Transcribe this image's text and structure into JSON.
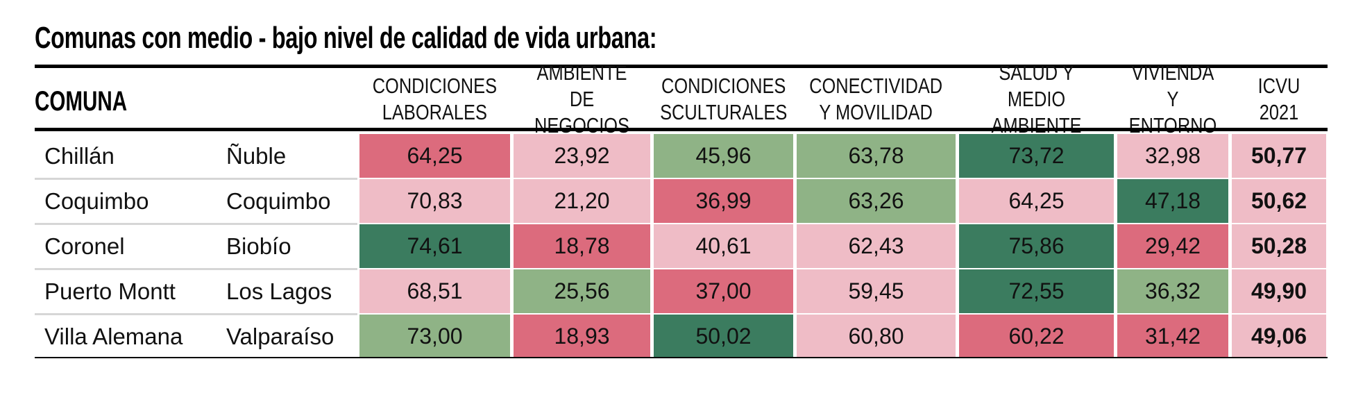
{
  "title": "Comunas con medio - bajo nivel de calidad de vida urbana:",
  "colors": {
    "dark_green": "#3b7c5f",
    "light_green": "#8fb386",
    "light_pink": "#efbcc6",
    "dark_pink": "#dc6b7d",
    "icvu_bg": "#efbcc6"
  },
  "chart_data": {
    "type": "table",
    "columns": [
      "COMUNA",
      "CONDICIONES\nLABORALES",
      "AMBIENTE DE\nNEGOCIOS",
      "CONDICIONES\nSCULTURALES",
      "CONECTIVIDAD\nY MOVILIDAD",
      "SALUD Y\nMEDIO AMBIENTE",
      "VIVIENDA\nY ENTORNO",
      "ICVU 2021"
    ],
    "rows": [
      {
        "comuna": "Chillán",
        "region": "Ñuble",
        "values": [
          "64,25",
          "23,92",
          "45,96",
          "63,78",
          "73,72",
          "32,98"
        ],
        "levels": [
          "dark_pink",
          "light_pink",
          "light_green",
          "light_green",
          "dark_green",
          "light_pink"
        ],
        "icvu": "50,77"
      },
      {
        "comuna": "Coquimbo",
        "region": "Coquimbo",
        "values": [
          "70,83",
          "21,20",
          "36,99",
          "63,26",
          "64,25",
          "47,18"
        ],
        "levels": [
          "light_pink",
          "light_pink",
          "dark_pink",
          "light_green",
          "light_pink",
          "dark_green"
        ],
        "icvu": "50,62"
      },
      {
        "comuna": "Coronel",
        "region": "Biobío",
        "values": [
          "74,61",
          "18,78",
          "40,61",
          "62,43",
          "75,86",
          "29,42"
        ],
        "levels": [
          "dark_green",
          "dark_pink",
          "light_pink",
          "light_pink",
          "dark_green",
          "dark_pink"
        ],
        "icvu": "50,28"
      },
      {
        "comuna": "Puerto Montt",
        "region": "Los Lagos",
        "values": [
          "68,51",
          "25,56",
          "37,00",
          "59,45",
          "72,55",
          "36,32"
        ],
        "levels": [
          "light_pink",
          "light_green",
          "dark_pink",
          "light_pink",
          "dark_green",
          "light_green"
        ],
        "icvu": "49,90"
      },
      {
        "comuna": "Villa Alemana",
        "region": "Valparaíso",
        "values": [
          "73,00",
          "18,93",
          "50,02",
          "60,80",
          "60,22",
          "31,42"
        ],
        "levels": [
          "light_green",
          "dark_pink",
          "dark_green",
          "light_pink",
          "dark_pink",
          "dark_pink"
        ],
        "icvu": "49,06"
      }
    ]
  }
}
